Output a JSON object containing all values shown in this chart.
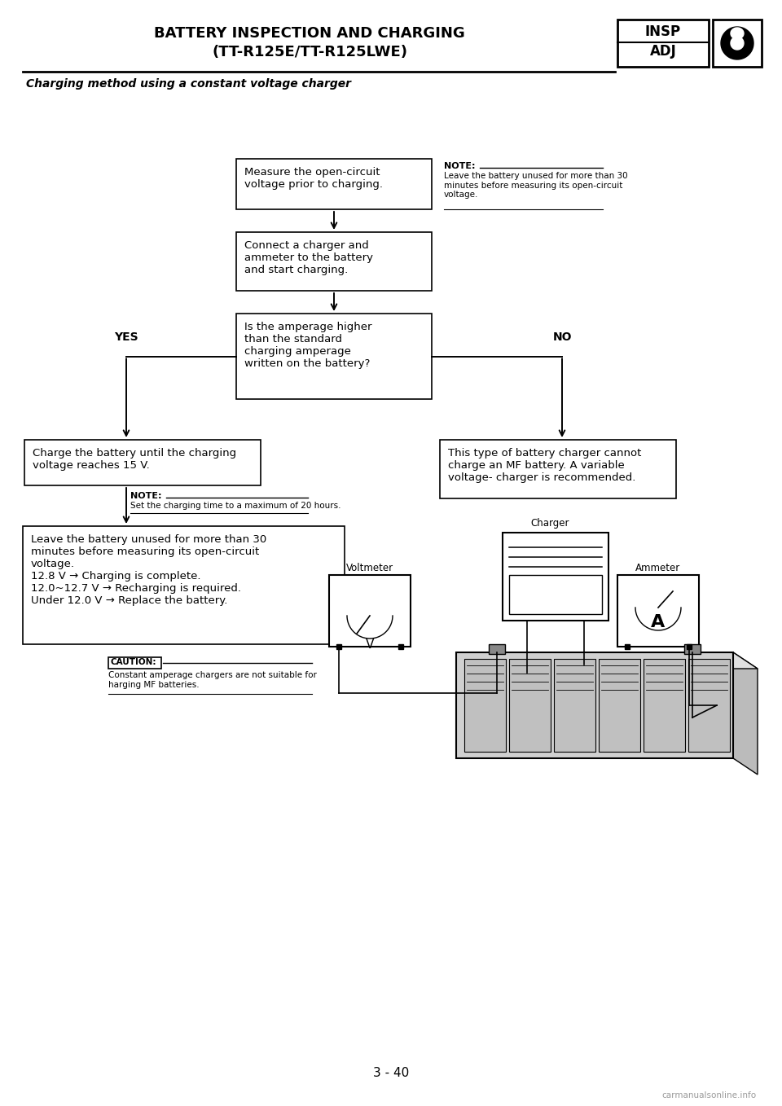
{
  "title_line1": "BATTERY INSPECTION AND CHARGING",
  "title_line2": "(TT-R125E/TT-R125LWE)",
  "subtitle": "Charging method using a constant voltage charger",
  "insp_label": "INSP",
  "adj_label": "ADJ",
  "page_number": "3 - 40",
  "watermark": "carmanualsonline.info",
  "box1_text": "Measure the open-circuit\nvoltage prior to charging.",
  "note1_title": "NOTE:",
  "note1_text": "Leave the battery unused for more than 30\nminutes before measuring its open-circuit\nvoltage.",
  "box2_text": "Connect a charger and\nammeter to the battery\nand start charging.",
  "box3_text": "Is the amperage higher\nthan the standard\ncharging amperage\nwritten on the battery?",
  "yes_label": "YES",
  "no_label": "NO",
  "box4_text": "Charge the battery until the charging\nvoltage reaches 15 V.",
  "box5_text": "This type of battery charger cannot\ncharge an MF battery. A variable\nvoltage- charger is recommended.",
  "note2_title": "NOTE:",
  "note2_text": "Set the charging time to a maximum of 20 hours.",
  "box6_text": "Leave the battery unused for more than 30\nminutes before measuring its open-circuit\nvoltage.\n12.8 V → Charging is complete.\n12.0~12.7 V → Recharging is required.\nUnder 12.0 V → Replace the battery.",
  "caution_title": "CAUTION:",
  "caution_text": "Constant amperage chargers are not suitable for\nharging MF batteries.",
  "voltmeter_label": "Voltmeter",
  "charger_label": "Charger",
  "ammeter_label": "Ammeter",
  "bg_color": "#ffffff"
}
